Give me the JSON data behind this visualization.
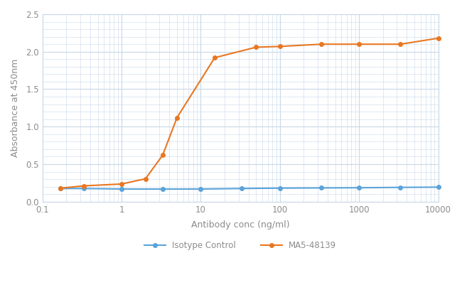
{
  "title": "",
  "xlabel": "Antibody conc (ng/ml)",
  "ylabel": "Absorbance at 450nm",
  "xlim": [
    0.1,
    10000
  ],
  "ylim": [
    0,
    2.5
  ],
  "yticks": [
    0,
    0.5,
    1.0,
    1.5,
    2.0,
    2.5
  ],
  "background_color": "#ffffff",
  "grid_color": "#c8d8e8",
  "isotype_x": [
    0.17,
    0.33,
    1.0,
    3.3,
    10.0,
    33.0,
    100.0,
    333.0,
    1000.0,
    3333.0,
    10000.0
  ],
  "isotype_y": [
    0.175,
    0.175,
    0.168,
    0.167,
    0.168,
    0.175,
    0.18,
    0.183,
    0.185,
    0.19,
    0.193
  ],
  "ma5_x": [
    0.17,
    0.33,
    1.0,
    2.0,
    3.3,
    5.0,
    15.0,
    50.0,
    100.0,
    333.0,
    1000.0,
    3333.0,
    10000.0
  ],
  "ma5_y": [
    0.18,
    0.21,
    0.235,
    0.305,
    0.62,
    1.12,
    1.92,
    2.06,
    2.07,
    2.1,
    2.1,
    2.1,
    2.18
  ],
  "isotype_color": "#5ba3d9",
  "ma5_color": "#e87722",
  "marker_size": 4,
  "linewidth": 1.5,
  "legend_isotype": "Isotype Control",
  "legend_ma5": "MA5-48139",
  "font_color": "#8c8c8c",
  "axis_label_fontsize": 9,
  "tick_fontsize": 8.5,
  "legend_fontsize": 8.5
}
